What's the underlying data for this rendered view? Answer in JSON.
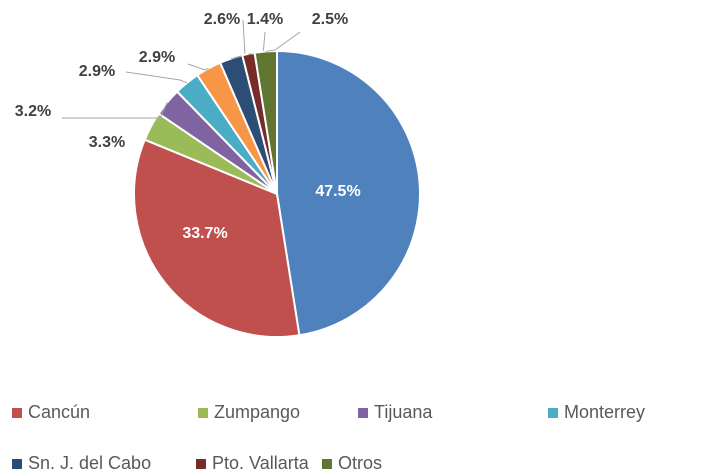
{
  "chart_data": {
    "type": "pie",
    "categories": [
      null,
      "Cancún",
      "Zumpango",
      "Tijuana",
      "Monterrey",
      null,
      "Sn. J. del Cabo",
      "Pto. Vallarta",
      "Otros"
    ],
    "values": [
      47.5,
      33.7,
      3.3,
      3.2,
      2.9,
      2.9,
      2.6,
      1.4,
      2.5
    ],
    "value_labels": [
      "47.5%",
      "33.7%",
      "3.3%",
      "3.2%",
      "2.9%",
      "2.9%",
      "2.6%",
      "1.4%",
      "2.5%"
    ],
    "colors": [
      "#4f81bd",
      "#c0504d",
      "#9bbb59",
      "#8064a2",
      "#4bacc6",
      "#f79646",
      "#2c4d75",
      "#772c2a",
      "#5f7530"
    ],
    "legend": "bottom"
  }
}
